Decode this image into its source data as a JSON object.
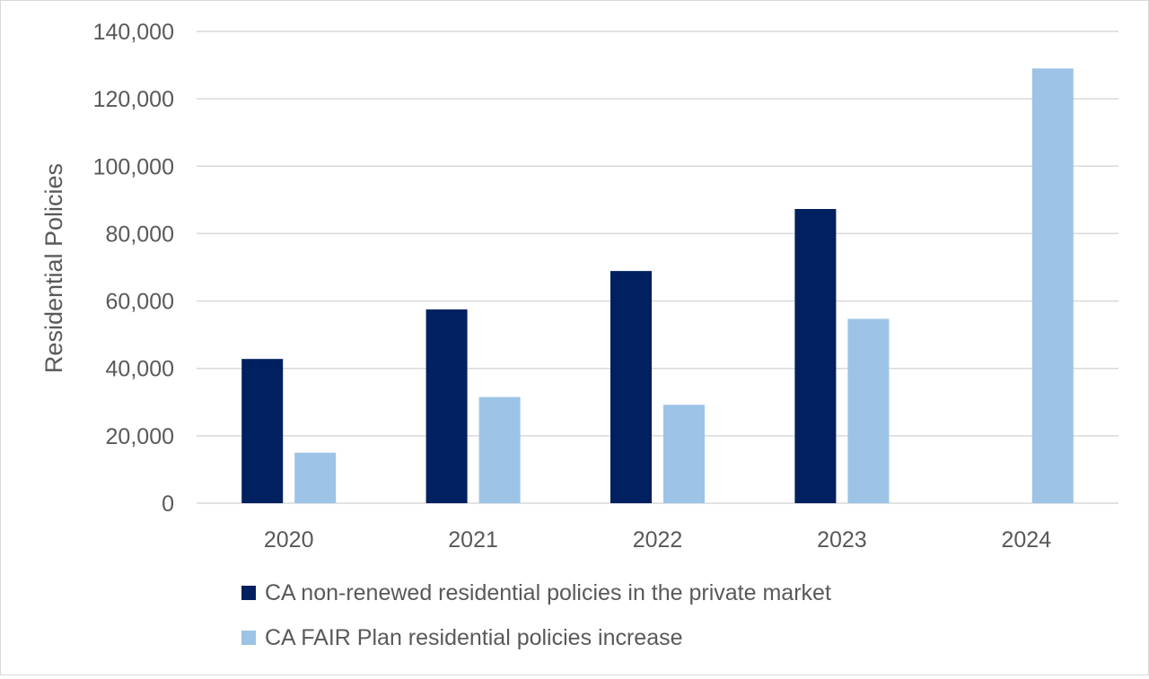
{
  "chart_data": {
    "type": "bar",
    "title": "",
    "xlabel": "",
    "ylabel": "Residential Policies",
    "categories": [
      "2020",
      "2021",
      "2022",
      "2023",
      "2024"
    ],
    "ylim": [
      0,
      140000
    ],
    "yticks": [
      0,
      20000,
      40000,
      60000,
      80000,
      100000,
      120000,
      140000
    ],
    "ytick_labels": [
      "0",
      "20,000",
      "40,000",
      "60,000",
      "80,000",
      "100,000",
      "120,000",
      "140,000"
    ],
    "grid": true,
    "legend_position": "bottom",
    "series": [
      {
        "name": "CA non-renewed residential policies in the private market",
        "color": "#002060",
        "values": [
          42800,
          57500,
          68900,
          87300,
          null
        ]
      },
      {
        "name": "CA FAIR Plan residential policies increase",
        "color": "#9DC3E6",
        "values": [
          15000,
          31500,
          29200,
          54700,
          129000
        ]
      }
    ]
  }
}
